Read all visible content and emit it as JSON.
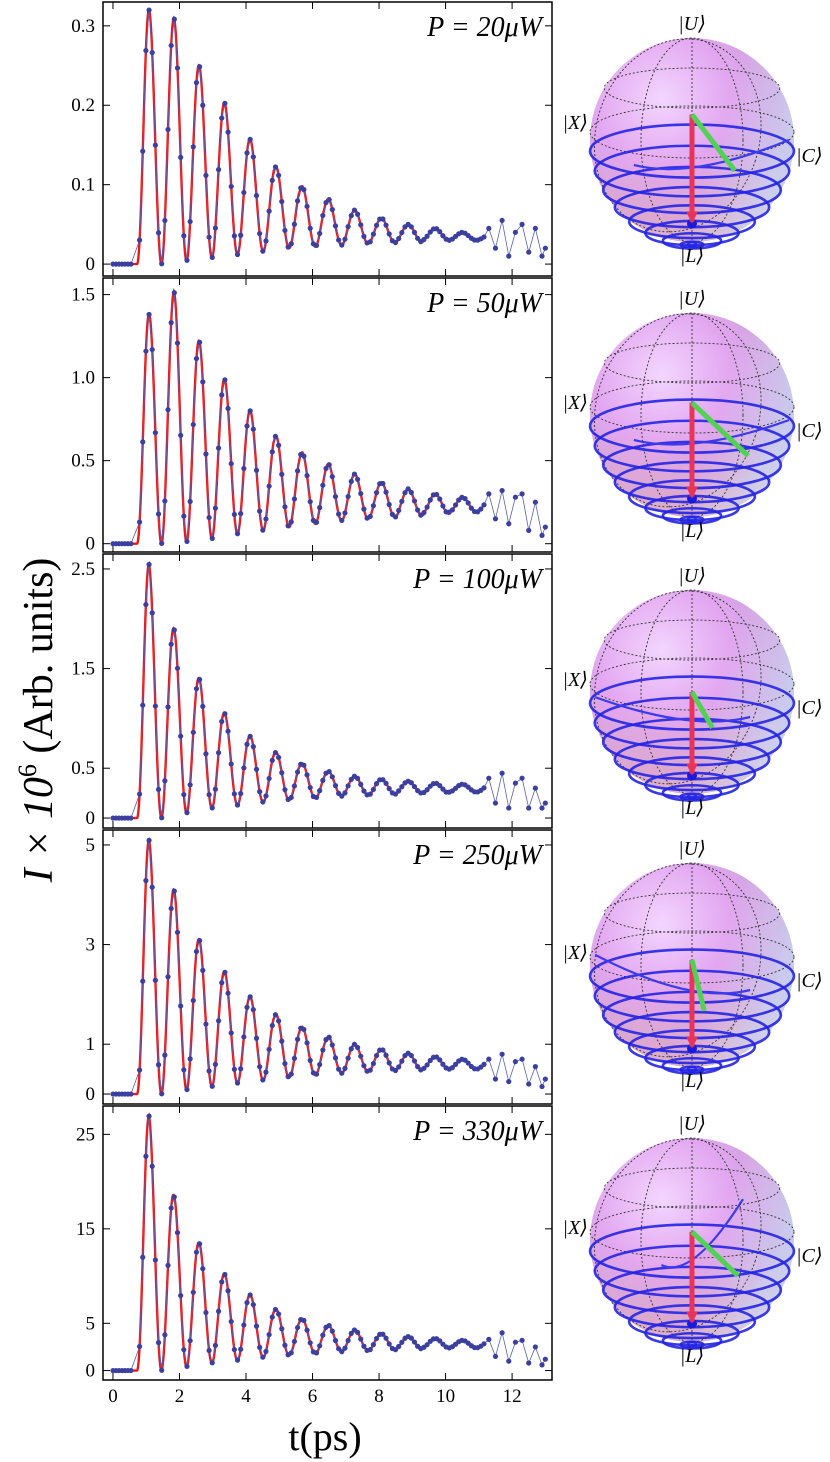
{
  "figure": {
    "ylabel": "I × 10⁶ (Arb. units)",
    "ylabel_main": "I × 10",
    "ylabel_exp": "6",
    "ylabel_rest": " (Arb. units)",
    "xlabel": "t(ps)"
  },
  "chart_data": [
    {
      "type": "line",
      "label": "P = 20μW",
      "xlim": [
        -0.3,
        13.2
      ],
      "ylim": [
        -0.015,
        0.33
      ],
      "x_ticks": [
        0,
        2,
        4,
        6,
        8,
        10,
        12
      ],
      "y_ticks": [
        {
          "v": 0,
          "t": "0"
        },
        {
          "v": 0.1,
          "t": "0.1"
        },
        {
          "v": 0.2,
          "t": "0.2"
        },
        {
          "v": 0.3,
          "t": "0.3"
        }
      ],
      "y_offset": 0.0,
      "peaks": [
        0.32,
        0.31,
        0.25,
        0.203,
        0.157,
        0.123,
        0.098,
        0.082,
        0.068,
        0.058,
        0.05,
        0.045,
        0.04,
        0.036
      ],
      "troughs": [
        0.0,
        0.004,
        0.008,
        0.012,
        0.016,
        0.02,
        0.022,
        0.024,
        0.026,
        0.027,
        0.028,
        0.03,
        0.03
      ],
      "tail_points": [
        [
          11.3,
          0.045
        ],
        [
          11.5,
          0.02
        ],
        [
          11.7,
          0.055
        ],
        [
          11.9,
          0.01
        ],
        [
          12.1,
          0.04
        ],
        [
          12.3,
          0.05
        ],
        [
          12.5,
          0.015
        ],
        [
          12.7,
          0.045
        ],
        [
          12.9,
          0.01
        ],
        [
          13.0,
          0.02
        ]
      ],
      "series": [
        {
          "name": "data",
          "color": "#3b3fa0"
        },
        {
          "name": "fit",
          "color": "#e8191a"
        }
      ]
    },
    {
      "type": "line",
      "label": "P = 50μW",
      "xlim": [
        -0.3,
        13.2
      ],
      "ylim": [
        -0.05,
        1.6
      ],
      "x_ticks": [
        0,
        2,
        4,
        6,
        8,
        10,
        12
      ],
      "y_ticks": [
        {
          "v": 0,
          "t": "0"
        },
        {
          "v": 0.5,
          "t": "0.5"
        },
        {
          "v": 1.0,
          "t": "1.0"
        },
        {
          "v": 1.5,
          "t": "1.5"
        }
      ],
      "y_offset": 0.0,
      "peaks": [
        1.38,
        1.52,
        1.22,
        0.99,
        0.8,
        0.65,
        0.55,
        0.48,
        0.42,
        0.37,
        0.33,
        0.3,
        0.28,
        0.26
      ],
      "troughs": [
        0.0,
        0.01,
        0.03,
        0.06,
        0.08,
        0.1,
        0.12,
        0.14,
        0.15,
        0.16,
        0.17,
        0.18,
        0.19
      ],
      "tail_points": [
        [
          11.3,
          0.3
        ],
        [
          11.5,
          0.15
        ],
        [
          11.7,
          0.32
        ],
        [
          11.9,
          0.12
        ],
        [
          12.1,
          0.28
        ],
        [
          12.3,
          0.3
        ],
        [
          12.5,
          0.08
        ],
        [
          12.7,
          0.25
        ],
        [
          12.9,
          0.05
        ],
        [
          13.0,
          0.1
        ]
      ],
      "series": [
        {
          "name": "data",
          "color": "#3b3fa0"
        },
        {
          "name": "fit",
          "color": "#e8191a"
        }
      ]
    },
    {
      "type": "line",
      "label": "P = 100μW",
      "xlim": [
        -0.3,
        13.2
      ],
      "ylim": [
        -0.1,
        2.65
      ],
      "x_ticks": [
        0,
        2,
        4,
        6,
        8,
        10,
        12
      ],
      "y_ticks": [
        {
          "v": 0,
          "t": "0"
        },
        {
          "v": 0.5,
          "t": "0.5"
        },
        {
          "v": 1.5,
          "t": "1.5"
        },
        {
          "v": 2.5,
          "t": "2.5"
        }
      ],
      "y_offset": 0.0,
      "peaks": [
        2.55,
        1.9,
        1.4,
        1.05,
        0.82,
        0.66,
        0.55,
        0.47,
        0.42,
        0.39,
        0.37,
        0.35,
        0.34,
        0.33
      ],
      "troughs": [
        0.0,
        0.05,
        0.1,
        0.13,
        0.16,
        0.18,
        0.2,
        0.22,
        0.23,
        0.24,
        0.25,
        0.25,
        0.26
      ],
      "tail_points": [
        [
          11.3,
          0.4
        ],
        [
          11.5,
          0.15
        ],
        [
          11.7,
          0.45
        ],
        [
          11.9,
          0.1
        ],
        [
          12.1,
          0.35
        ],
        [
          12.3,
          0.4
        ],
        [
          12.5,
          0.1
        ],
        [
          12.7,
          0.3
        ],
        [
          12.9,
          0.1
        ],
        [
          13.0,
          0.15
        ]
      ],
      "series": [
        {
          "name": "data",
          "color": "#3b3fa0"
        },
        {
          "name": "fit",
          "color": "#e8191a"
        }
      ]
    },
    {
      "type": "line",
      "label": "P = 250μW",
      "xlim": [
        -0.3,
        13.2
      ],
      "ylim": [
        -0.2,
        5.3
      ],
      "x_ticks": [
        0,
        2,
        4,
        6,
        8,
        10,
        12
      ],
      "y_ticks": [
        {
          "v": 0,
          "t": "0"
        },
        {
          "v": 1,
          "t": "1"
        },
        {
          "v": 3,
          "t": "3"
        },
        {
          "v": 5,
          "t": "5"
        }
      ],
      "y_offset": 0.0,
      "peaks": [
        5.1,
        4.1,
        3.1,
        2.45,
        1.95,
        1.6,
        1.35,
        1.15,
        1.0,
        0.9,
        0.82,
        0.75,
        0.7,
        0.65
      ],
      "troughs": [
        0.0,
        0.08,
        0.15,
        0.22,
        0.28,
        0.33,
        0.38,
        0.42,
        0.45,
        0.47,
        0.48,
        0.5,
        0.5
      ],
      "tail_points": [
        [
          11.3,
          0.7
        ],
        [
          11.5,
          0.3
        ],
        [
          11.7,
          0.8
        ],
        [
          11.9,
          0.25
        ],
        [
          12.1,
          0.65
        ],
        [
          12.3,
          0.7
        ],
        [
          12.5,
          0.2
        ],
        [
          12.7,
          0.55
        ],
        [
          12.9,
          0.15
        ],
        [
          13.0,
          0.3
        ]
      ],
      "series": [
        {
          "name": "data",
          "color": "#3b3fa0"
        },
        {
          "name": "fit",
          "color": "#e8191a"
        }
      ]
    },
    {
      "type": "line",
      "label": "P = 330μW",
      "xlim": [
        -0.3,
        13.2
      ],
      "ylim": [
        -1.0,
        28.0
      ],
      "x_ticks": [
        0,
        2,
        4,
        6,
        8,
        10,
        12
      ],
      "y_ticks": [
        {
          "v": 0,
          "t": "0"
        },
        {
          "v": 5,
          "t": "5"
        },
        {
          "v": 15,
          "t": "15"
        },
        {
          "v": 25,
          "t": "25"
        }
      ],
      "y_offset": 0.0,
      "peaks": [
        27.0,
        18.5,
        13.5,
        10.2,
        8.0,
        6.5,
        5.5,
        4.8,
        4.3,
        3.9,
        3.6,
        3.4,
        3.2,
        3.1
      ],
      "troughs": [
        0.0,
        0.4,
        0.8,
        1.1,
        1.4,
        1.6,
        1.8,
        2.0,
        2.1,
        2.2,
        2.3,
        2.4,
        2.4
      ],
      "tail_points": [
        [
          11.3,
          3.3
        ],
        [
          11.5,
          1.5
        ],
        [
          11.7,
          4.0
        ],
        [
          11.9,
          1.0
        ],
        [
          12.1,
          3.0
        ],
        [
          12.3,
          3.2
        ],
        [
          12.5,
          0.8
        ],
        [
          12.7,
          2.5
        ],
        [
          12.9,
          0.6
        ],
        [
          13.0,
          1.2
        ]
      ],
      "series": [
        {
          "name": "data",
          "color": "#3b3fa0"
        },
        {
          "name": "fit",
          "color": "#e8191a"
        }
      ]
    }
  ],
  "spheres": [
    {
      "labels": {
        "U": "|U⟩",
        "X": "|X⟩",
        "C": "|C⟩",
        "L": "|L⟩"
      },
      "red_tip": [
        0.0,
        0.25
      ],
      "green_tip": [
        0.42,
        -0.3
      ],
      "entry": [
        0.95,
        0.0
      ]
    },
    {
      "labels": {
        "U": "|U⟩",
        "X": "|X⟩",
        "C": "|C⟩",
        "L": "|L⟩"
      },
      "red_tip": [
        0.0,
        0.12
      ],
      "green_tip": [
        0.55,
        -0.4
      ],
      "entry": [
        0.95,
        0.05
      ]
    },
    {
      "labels": {
        "U": "|U⟩",
        "X": "|X⟩",
        "C": "|C⟩",
        "L": "|L⟩"
      },
      "red_tip": [
        0.0,
        0.0
      ],
      "green_tip": [
        0.2,
        -0.35
      ],
      "entry": [
        -0.95,
        0.05
      ]
    },
    {
      "labels": {
        "U": "|U⟩",
        "X": "|X⟩",
        "C": "|C⟩",
        "L": "|L⟩"
      },
      "red_tip": [
        0.0,
        0.05
      ],
      "green_tip": [
        0.12,
        -0.45
      ],
      "entry": [
        -0.95,
        -0.1
      ]
    },
    {
      "labels": {
        "U": "|U⟩",
        "X": "|X⟩",
        "C": "|C⟩",
        "L": "|L⟩"
      },
      "red_tip": [
        0.0,
        0.08
      ],
      "green_tip": [
        0.45,
        -0.35
      ],
      "entry": [
        0.5,
        -0.4
      ]
    }
  ]
}
